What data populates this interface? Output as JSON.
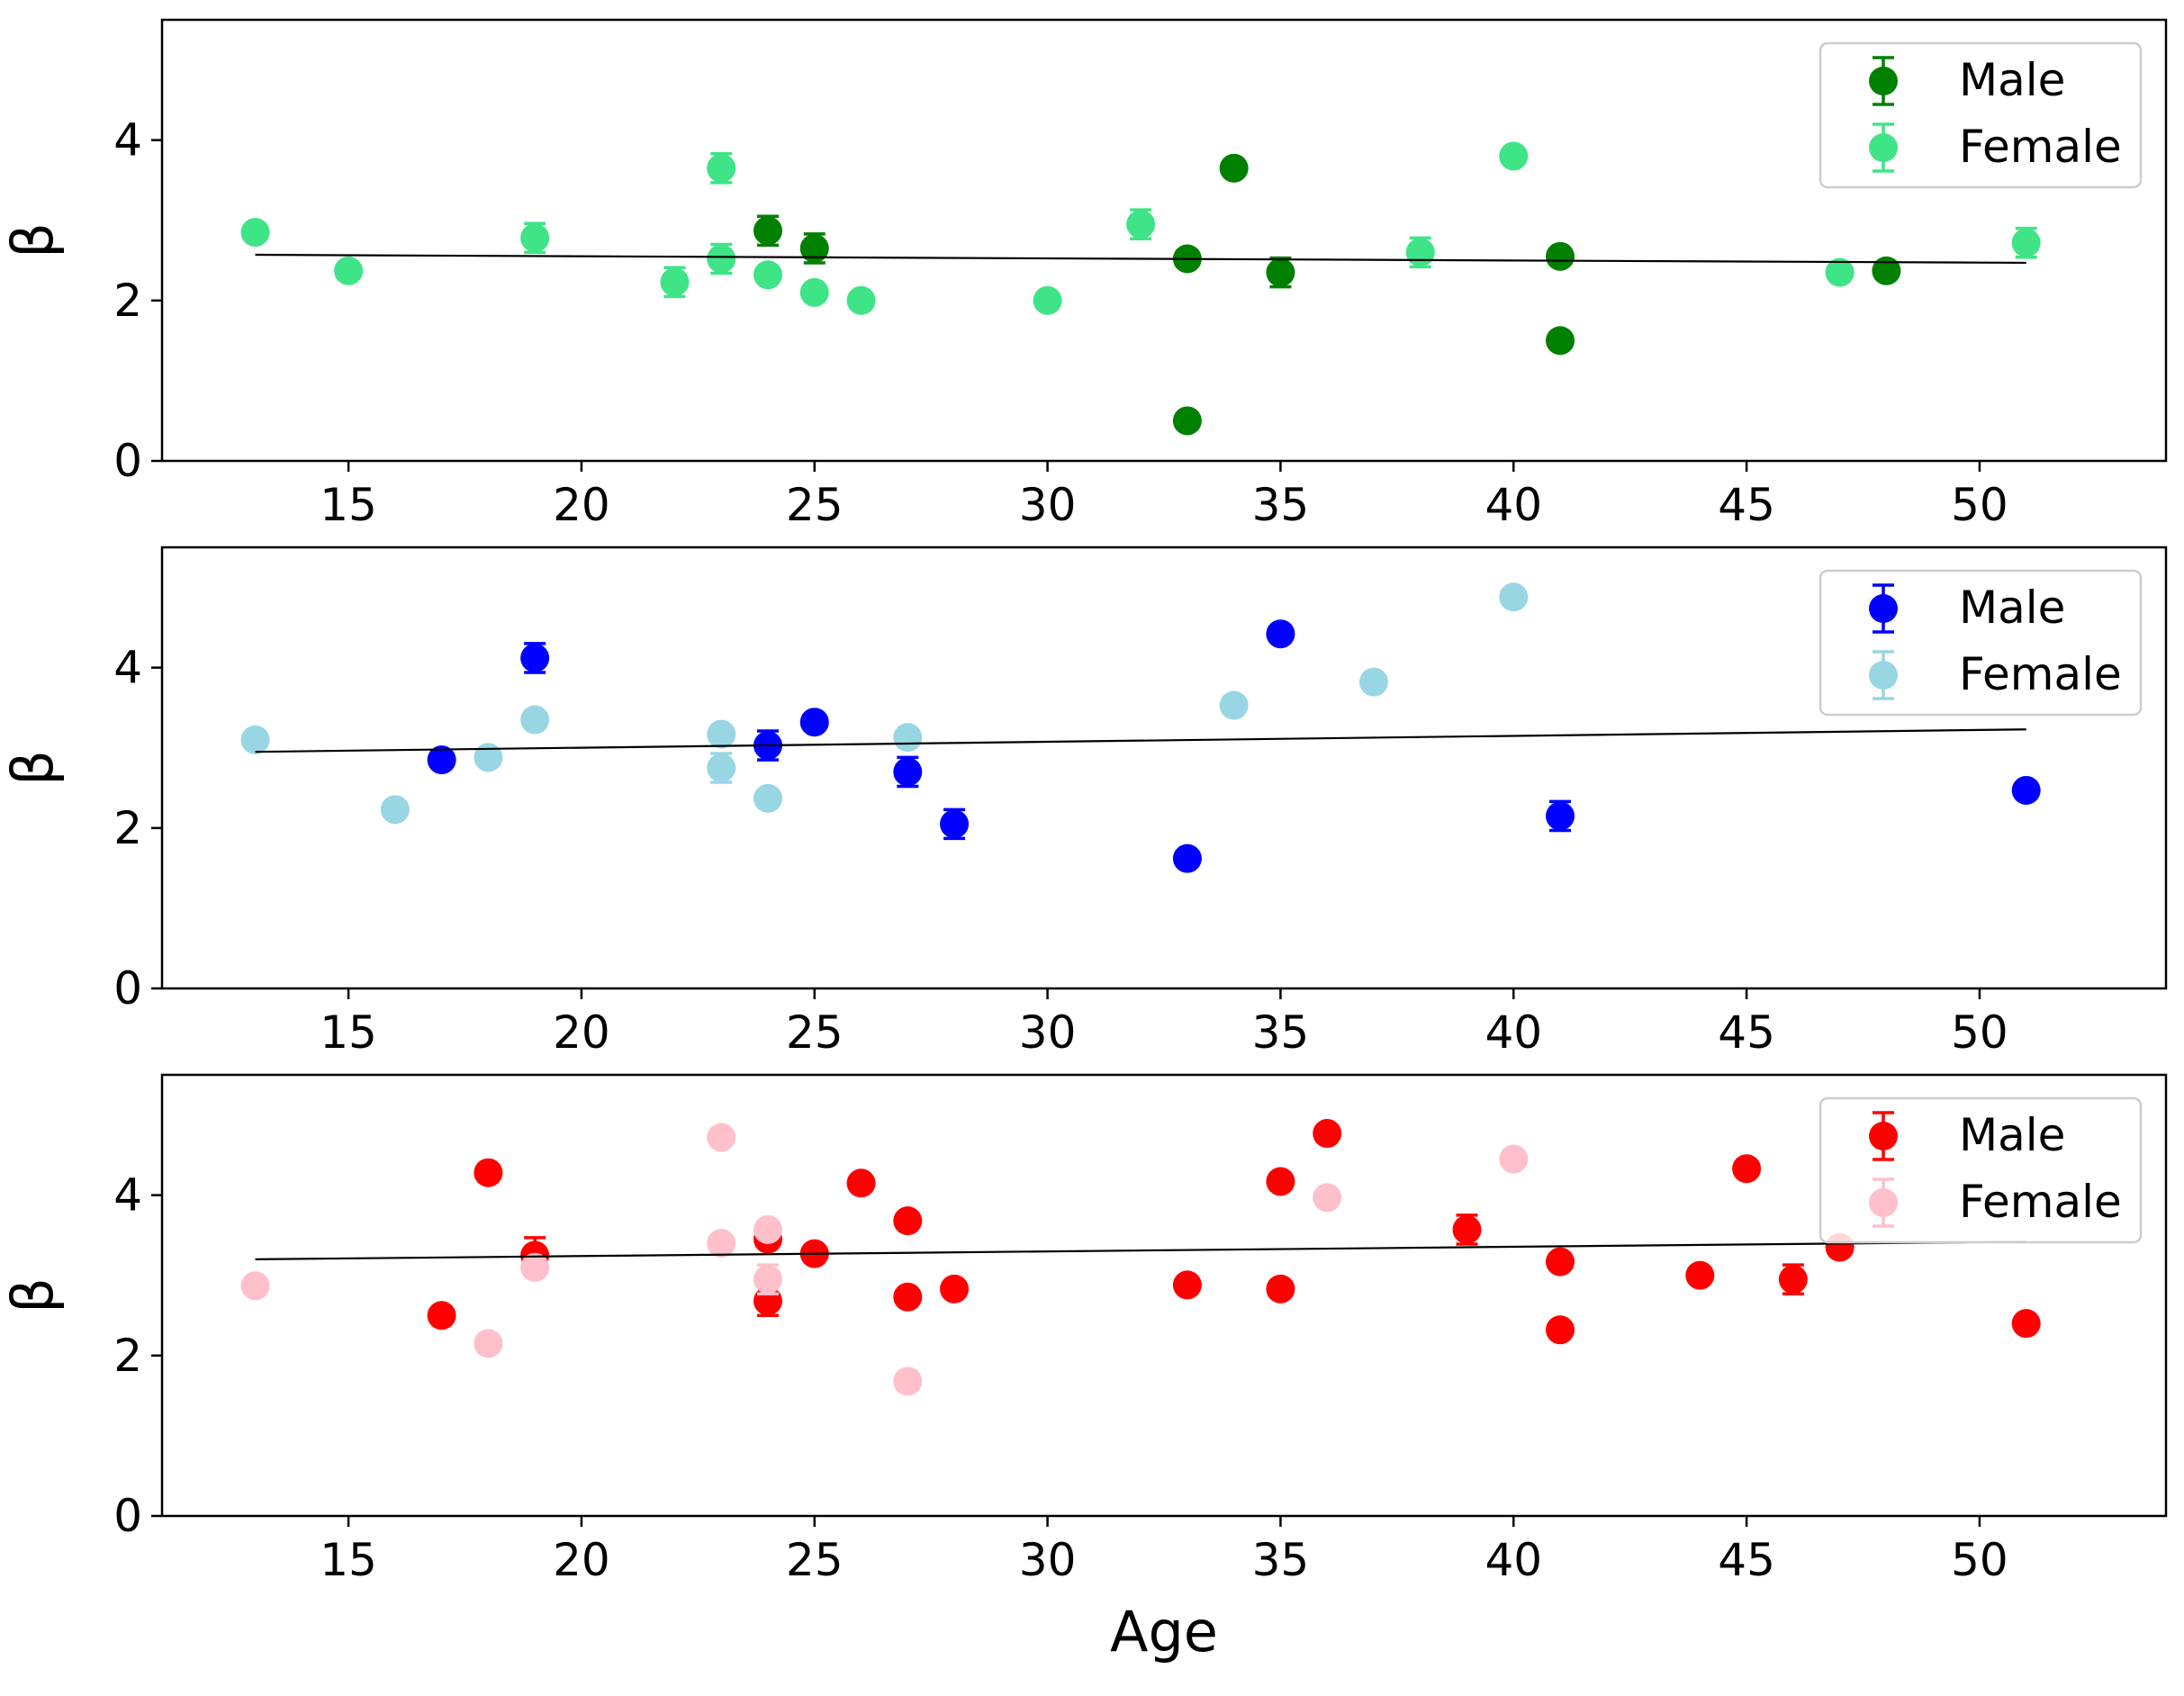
{
  "chart_data": [
    {
      "type": "scatter",
      "ylabel": "β",
      "xlim": [
        11,
        54
      ],
      "ylim": [
        0,
        5.5
      ],
      "xticks": [
        15,
        20,
        25,
        30,
        35,
        40,
        45,
        50
      ],
      "yticks": [
        0,
        2,
        4
      ],
      "legend_position": "top-right",
      "series": [
        {
          "name": "Male",
          "color": "#008000",
          "points": [
            [
              24,
              2.87
            ],
            [
              25,
              2.65
            ],
            [
              33,
              0.5
            ],
            [
              33,
              2.52
            ],
            [
              34,
              3.65
            ],
            [
              35,
              2.35
            ],
            [
              41,
              1.5
            ],
            [
              41,
              2.55
            ],
            [
              48,
              2.37
            ]
          ],
          "errors": [
            0.18,
            0.18,
            0.05,
            0.05,
            0.05,
            0.18,
            0.05,
            0.05,
            0.05
          ]
        },
        {
          "name": "Female",
          "color": "#3ee486",
          "points": [
            [
              13,
              2.85
            ],
            [
              15,
              2.37
            ],
            [
              19,
              2.78
            ],
            [
              22,
              2.23
            ],
            [
              23,
              3.65
            ],
            [
              23,
              2.52
            ],
            [
              24,
              2.32
            ],
            [
              25,
              2.1
            ],
            [
              26,
              2.0
            ],
            [
              30,
              2.0
            ],
            [
              32,
              2.95
            ],
            [
              38,
              2.6
            ],
            [
              40,
              3.8
            ],
            [
              47,
              2.35
            ],
            [
              51,
              2.72
            ]
          ],
          "errors": [
            0.05,
            0.05,
            0.18,
            0.18,
            0.18,
            0.18,
            0.05,
            0.05,
            0.05,
            0.05,
            0.18,
            0.18,
            0.05,
            0.05,
            0.18
          ]
        }
      ],
      "trend": {
        "x": [
          13,
          51
        ],
        "y": [
          2.57,
          2.47
        ]
      }
    },
    {
      "type": "scatter",
      "ylabel": "β",
      "xlim": [
        11,
        54
      ],
      "ylim": [
        0,
        5.5
      ],
      "xticks": [
        15,
        20,
        25,
        30,
        35,
        40,
        45,
        50
      ],
      "yticks": [
        0,
        2,
        4
      ],
      "legend_position": "top-right",
      "series": [
        {
          "name": "Male",
          "color": "#0000ff",
          "points": [
            [
              17,
              2.85
            ],
            [
              19,
              4.12
            ],
            [
              24,
              3.03
            ],
            [
              25,
              3.32
            ],
            [
              27,
              2.7
            ],
            [
              28,
              2.05
            ],
            [
              33,
              1.62
            ],
            [
              35,
              4.42
            ],
            [
              41,
              2.15
            ],
            [
              51,
              2.47
            ]
          ],
          "errors": [
            0.05,
            0.18,
            0.18,
            0.05,
            0.18,
            0.18,
            0.05,
            0.05,
            0.18,
            0.05
          ]
        },
        {
          "name": "Female",
          "color": "#98d6e4",
          "points": [
            [
              13,
              3.1
            ],
            [
              16,
              2.23
            ],
            [
              18,
              2.88
            ],
            [
              19,
              3.35
            ],
            [
              23,
              3.17
            ],
            [
              23,
              2.75
            ],
            [
              24,
              2.37
            ],
            [
              27,
              3.13
            ],
            [
              34,
              3.53
            ],
            [
              37,
              3.82
            ],
            [
              40,
              4.88
            ]
          ],
          "errors": [
            0.05,
            0.05,
            0.05,
            0.05,
            0.05,
            0.18,
            0.05,
            0.05,
            0.05,
            0.05,
            0.05
          ]
        }
      ],
      "trend": {
        "x": [
          13,
          51
        ],
        "y": [
          2.95,
          3.23
        ]
      }
    },
    {
      "type": "scatter",
      "ylabel": "β",
      "xlabel": "Age",
      "xlim": [
        11,
        54
      ],
      "ylim": [
        0,
        5.5
      ],
      "xticks": [
        15,
        20,
        25,
        30,
        35,
        40,
        45,
        50
      ],
      "yticks": [
        0,
        2,
        4
      ],
      "legend_position": "top-right",
      "series": [
        {
          "name": "Male",
          "color": "#ff0000",
          "points": [
            [
              17,
              2.5
            ],
            [
              18,
              4.28
            ],
            [
              19,
              3.25
            ],
            [
              24,
              3.45
            ],
            [
              24,
              2.68
            ],
            [
              25,
              3.27
            ],
            [
              26,
              4.15
            ],
            [
              27,
              3.68
            ],
            [
              27,
              2.73
            ],
            [
              28,
              2.83
            ],
            [
              33,
              2.88
            ],
            [
              35,
              4.17
            ],
            [
              35,
              2.83
            ],
            [
              36,
              4.77
            ],
            [
              39,
              3.57
            ],
            [
              41,
              3.17
            ],
            [
              41,
              2.32
            ],
            [
              44,
              3.0
            ],
            [
              45,
              4.33
            ],
            [
              46,
              2.95
            ],
            [
              47,
              3.35
            ],
            [
              51,
              2.4
            ]
          ],
          "errors": [
            0.05,
            0.05,
            0.22,
            0.05,
            0.18,
            0.05,
            0.05,
            0.05,
            0.05,
            0.05,
            0.05,
            0.05,
            0.05,
            0.05,
            0.18,
            0.05,
            0.05,
            0.05,
            0.05,
            0.18,
            0.05,
            0.05
          ]
        },
        {
          "name": "Female",
          "color": "#ffc0cb",
          "points": [
            [
              13,
              2.87
            ],
            [
              18,
              2.15
            ],
            [
              19,
              3.1
            ],
            [
              23,
              4.72
            ],
            [
              23,
              3.4
            ],
            [
              24,
              3.57
            ],
            [
              24,
              2.95
            ],
            [
              27,
              1.68
            ],
            [
              36,
              3.97
            ],
            [
              40,
              4.45
            ]
          ],
          "errors": [
            0.05,
            0.05,
            0.05,
            0.05,
            0.05,
            0.05,
            0.18,
            0.05,
            0.05,
            0.05
          ]
        }
      ],
      "trend": {
        "x": [
          13,
          51
        ],
        "y": [
          3.2,
          3.42
        ]
      }
    }
  ]
}
